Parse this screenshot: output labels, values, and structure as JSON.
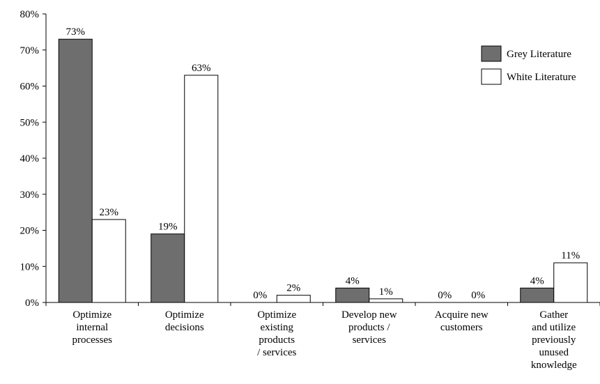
{
  "chart_data": {
    "type": "bar",
    "categories": [
      [
        "Optimize",
        "internal",
        "processes"
      ],
      [
        "Optimize",
        "decisions"
      ],
      [
        "Optimize",
        "existing",
        "products",
        "/ services"
      ],
      [
        "Develop new",
        "products /",
        "services"
      ],
      [
        "Acquire new",
        "customers"
      ],
      [
        "Gather",
        "and utilize",
        "previously",
        "unused",
        "knowledge"
      ]
    ],
    "series": [
      {
        "name": "Grey Literature",
        "color": "#6e6e6e",
        "values": [
          73,
          19,
          0,
          4,
          0,
          4
        ],
        "labels": [
          "73%",
          "19%",
          "0%",
          "4%",
          "0%",
          "4%"
        ]
      },
      {
        "name": "White Literature",
        "color": "#ffffff",
        "values": [
          23,
          63,
          2,
          1,
          0,
          11
        ],
        "labels": [
          "23%",
          "63%",
          "2%",
          "1%",
          "0%",
          "11%"
        ]
      }
    ],
    "ylim": [
      0,
      80
    ],
    "yticks": [
      0,
      10,
      20,
      30,
      40,
      50,
      60,
      70,
      80
    ],
    "ytick_labels": [
      "0%",
      "10%",
      "20%",
      "30%",
      "40%",
      "50%",
      "60%",
      "70%",
      "80%"
    ],
    "title": "",
    "xlabel": "",
    "ylabel": "",
    "grid": false,
    "legend_position": "top-right"
  }
}
